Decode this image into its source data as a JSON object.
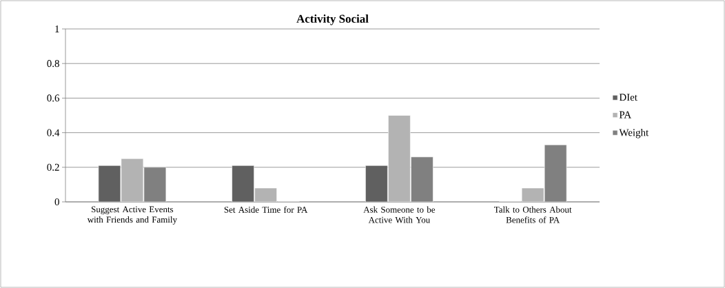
{
  "chart_data": {
    "type": "bar",
    "title": "Activity Social",
    "categories": [
      "Suggest Active Events with Friends and Family",
      "Set Aside Time for PA",
      "Ask Someone to be Active With You",
      "Talk to Others About Benefits of PA"
    ],
    "series": [
      {
        "name": "DIet",
        "color": "#606060",
        "values": [
          0.21,
          0.21,
          0.21,
          0
        ]
      },
      {
        "name": "PA",
        "color": "#b3b3b3",
        "values": [
          0.25,
          0.08,
          0.5,
          0.08
        ]
      },
      {
        "name": "Weight",
        "color": "#808080",
        "values": [
          0.2,
          0,
          0.26,
          0.33
        ]
      }
    ],
    "ylim": [
      0,
      1
    ],
    "yticks": [
      0,
      0.2,
      0.4,
      0.6,
      0.8,
      1
    ],
    "grid": "y",
    "legend": "right"
  }
}
